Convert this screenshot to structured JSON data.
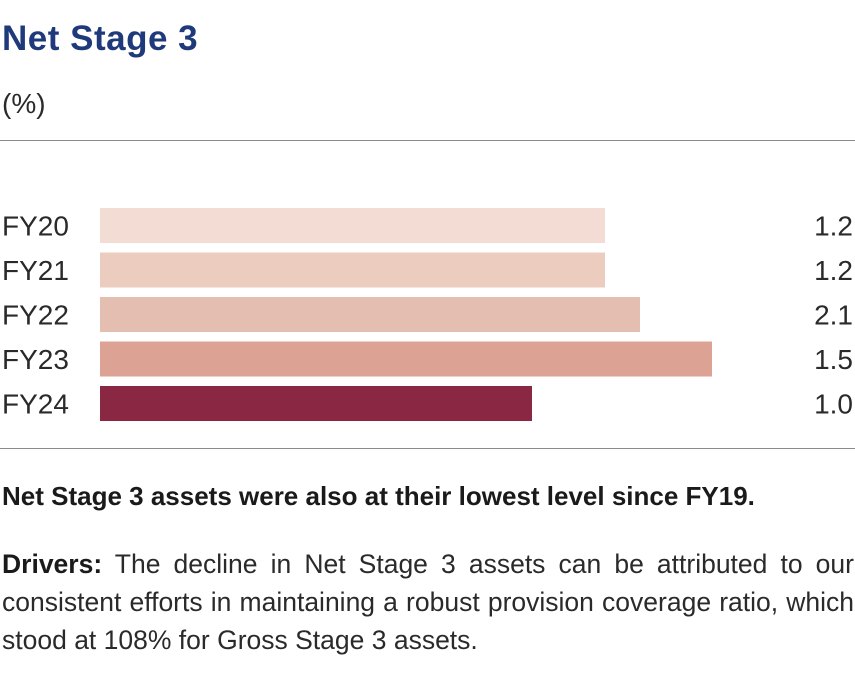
{
  "header": {
    "title": "Net Stage 3",
    "unit": "(%)"
  },
  "chart_data": {
    "type": "bar",
    "orientation": "horizontal",
    "title": "Net Stage 3",
    "ylabel": "(%)",
    "categories": [
      "FY20",
      "FY21",
      "FY22",
      "FY23",
      "FY24"
    ],
    "values": [
      1.2,
      1.2,
      2.1,
      1.5,
      1.0
    ],
    "value_labels": [
      "1.2",
      "1.2",
      "2.1",
      "1.5",
      "1.0"
    ],
    "colors": [
      "#f2dcd3",
      "#ebccbf",
      "#e4beb0",
      "#dca294",
      "#8a2742"
    ],
    "grid": false,
    "legend": "none"
  },
  "text": {
    "footnote": "Net Stage 3 assets were also at their lowest level since FY19.",
    "drivers_label": "Drivers:",
    "drivers_body": " The decline in Net Stage 3 assets can be attributed to our consistent efforts in maintaining a robust provision coverage ratio, which stood at 108% for Gross Stage 3 assets."
  }
}
